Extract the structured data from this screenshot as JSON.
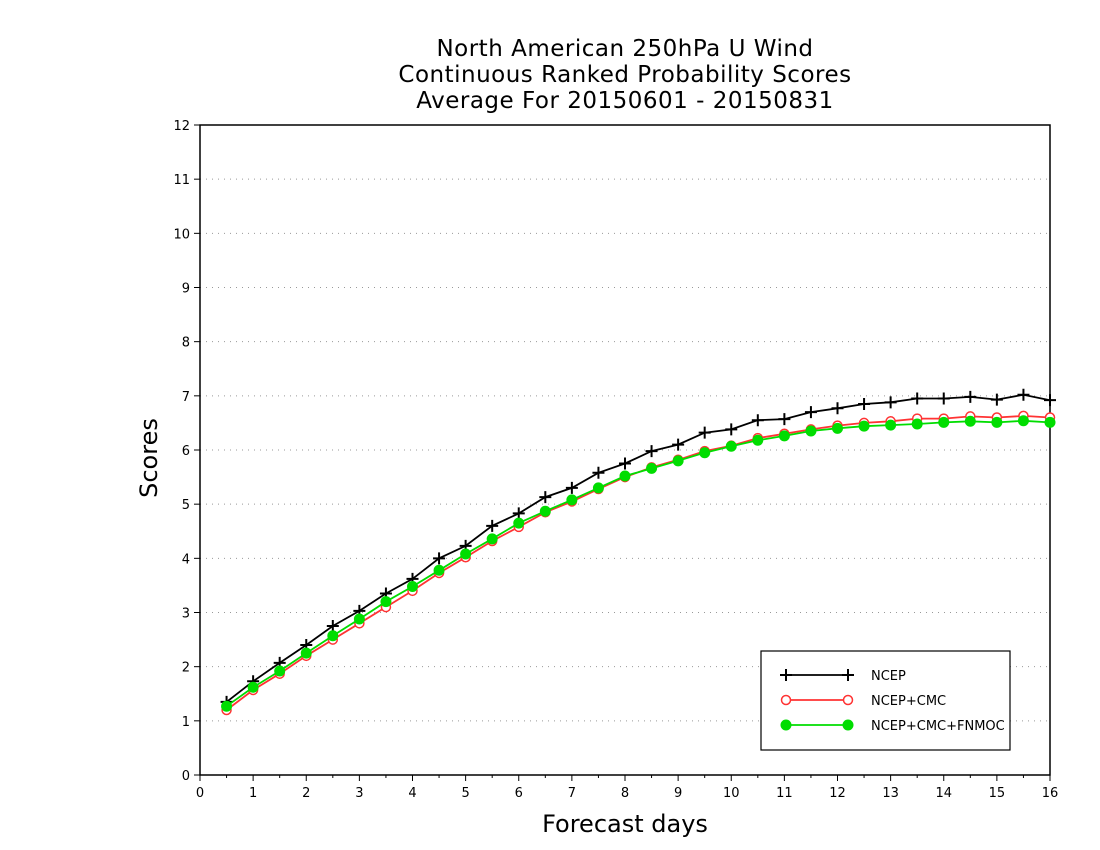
{
  "chart_data": {
    "type": "line",
    "title": [
      "North American 250hPa U Wind",
      "Continuous Ranked Probability Scores",
      "Average For 20150601 - 20150831"
    ],
    "xlabel": "Forecast days",
    "ylabel": "Scores",
    "xlim": [
      0,
      16
    ],
    "ylim": [
      0,
      12
    ],
    "xticks": [
      "0",
      "1",
      "2",
      "3",
      "4",
      "5",
      "6",
      "7",
      "8",
      "9",
      "10",
      "11",
      "12",
      "13",
      "14",
      "15",
      "16"
    ],
    "yticks": [
      "0",
      "1",
      "2",
      "3",
      "4",
      "5",
      "6",
      "7",
      "8",
      "9",
      "10",
      "11",
      "12"
    ],
    "grid": "horizontal dotted",
    "legend_position": "bottom-right",
    "x": [
      0.5,
      1,
      1.5,
      2,
      2.5,
      3,
      3.5,
      4,
      4.5,
      5,
      5.5,
      6,
      6.5,
      7,
      7.5,
      8,
      8.5,
      9,
      9.5,
      10,
      10.5,
      11,
      11.5,
      12,
      12.5,
      13,
      13.5,
      14,
      14.5,
      15,
      15.5,
      16
    ],
    "series": [
      {
        "name": "NCEP",
        "color": "#000000",
        "marker": "plus",
        "values": [
          1.35,
          1.73,
          2.07,
          2.4,
          2.75,
          3.03,
          3.35,
          3.62,
          4.0,
          4.23,
          4.6,
          4.83,
          5.13,
          5.3,
          5.58,
          5.75,
          5.98,
          6.1,
          6.32,
          6.38,
          6.55,
          6.57,
          6.7,
          6.77,
          6.85,
          6.88,
          6.95,
          6.95,
          6.98,
          6.93,
          7.02,
          6.92
        ]
      },
      {
        "name": "NCEP+CMC",
        "color": "#ff3333",
        "marker": "open-circle",
        "values": [
          1.2,
          1.57,
          1.87,
          2.2,
          2.5,
          2.8,
          3.1,
          3.4,
          3.73,
          4.02,
          4.32,
          4.58,
          4.85,
          5.05,
          5.28,
          5.5,
          5.68,
          5.82,
          5.98,
          6.08,
          6.22,
          6.3,
          6.38,
          6.45,
          6.5,
          6.53,
          6.58,
          6.58,
          6.62,
          6.6,
          6.63,
          6.6
        ]
      },
      {
        "name": "NCEP+CMC+FNMOC",
        "color": "#00dd00",
        "marker": "filled-circle",
        "values": [
          1.27,
          1.62,
          1.92,
          2.25,
          2.57,
          2.88,
          3.2,
          3.48,
          3.78,
          4.08,
          4.36,
          4.65,
          4.87,
          5.08,
          5.3,
          5.52,
          5.66,
          5.8,
          5.95,
          6.07,
          6.18,
          6.26,
          6.35,
          6.4,
          6.44,
          6.46,
          6.48,
          6.51,
          6.53,
          6.51,
          6.54,
          6.51
        ]
      }
    ]
  }
}
